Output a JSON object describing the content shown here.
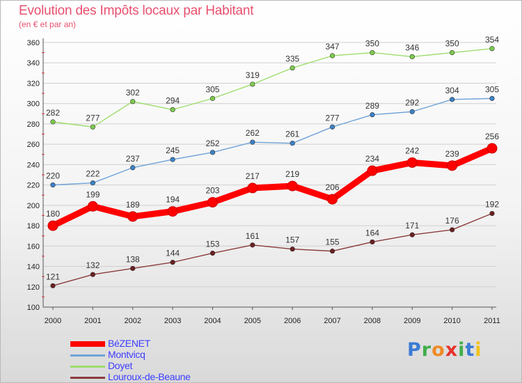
{
  "title": "Evolution des Impôts locaux par Habitant",
  "subtitle": "(en € et par an)",
  "logo": {
    "text": "Proxiti",
    "letters": [
      {
        "ch": "P",
        "color": "#3b7bd4"
      },
      {
        "ch": "r",
        "color": "#3fae49"
      },
      {
        "ch": "o",
        "color": "#f08a24"
      },
      {
        "ch": "x",
        "color": "#e8312d"
      },
      {
        "ch": "i",
        "color": "#3fae49"
      },
      {
        "ch": "t",
        "color": "#3b7bd4"
      },
      {
        "ch": "i",
        "color": "#f2c21a"
      }
    ]
  },
  "chart_data": {
    "type": "line",
    "title": "Evolution des Impôts locaux par Habitant",
    "subtitle": "(en € et par an)",
    "xlabel": "",
    "ylabel": "",
    "x": [
      "2000",
      "2001",
      "2002",
      "2003",
      "2004",
      "2005",
      "2006",
      "2007",
      "2008",
      "2009",
      "2010",
      "2011"
    ],
    "ylim": [
      100,
      360
    ],
    "yticks": [
      100,
      120,
      140,
      160,
      180,
      200,
      220,
      240,
      260,
      280,
      300,
      320,
      340,
      360
    ],
    "grid": "horizontal",
    "legend_position": "bottom-left",
    "series": [
      {
        "name": "BéZENET",
        "color": "#ff0000",
        "marker": "#ff0000",
        "emphasis": true,
        "values": [
          180,
          199,
          189,
          194,
          203,
          217,
          219,
          206,
          234,
          242,
          239,
          256
        ]
      },
      {
        "name": "Montvicq",
        "color": "#6fa3d8",
        "marker": "#3c82c8",
        "emphasis": false,
        "values": [
          220,
          222,
          237,
          245,
          252,
          262,
          261,
          277,
          289,
          292,
          304,
          305
        ]
      },
      {
        "name": "Doyet",
        "color": "#9ede6e",
        "marker": "#7ccc4c",
        "emphasis": false,
        "values": [
          282,
          277,
          302,
          294,
          305,
          319,
          335,
          347,
          350,
          346,
          350,
          354
        ]
      },
      {
        "name": "Louroux-de-Beaune",
        "color": "#8b3c3c",
        "marker": "#6b1f1f",
        "emphasis": false,
        "values": [
          121,
          132,
          138,
          144,
          153,
          161,
          157,
          155,
          164,
          171,
          176,
          192
        ]
      }
    ]
  }
}
